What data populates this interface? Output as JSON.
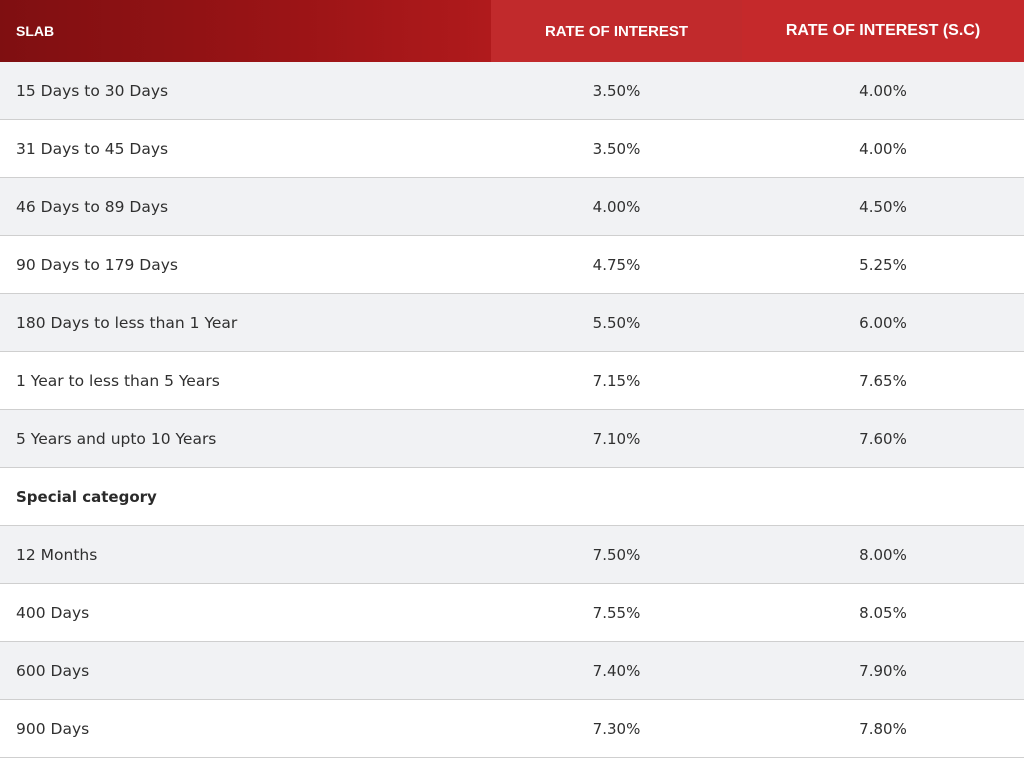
{
  "header": {
    "slab": "SLAB",
    "rate_of_interest": "RATE OF INTEREST",
    "rate_of_interest_sc": "RATE OF INTEREST  (S.C)"
  },
  "rows": [
    {
      "slab": "15 Days to 30 Days",
      "roi": "3.50%",
      "roi_sc": "4.00%"
    },
    {
      "slab": "31 Days to 45 Days",
      "roi": "3.50%",
      "roi_sc": "4.00%"
    },
    {
      "slab": "46 Days to 89 Days",
      "roi": "4.00%",
      "roi_sc": "4.50%"
    },
    {
      "slab": "90 Days to 179 Days",
      "roi": "4.75%",
      "roi_sc": "5.25%"
    },
    {
      "slab": "180 Days to less than 1 Year",
      "roi": "5.50%",
      "roi_sc": "6.00%"
    },
    {
      "slab": "1 Year to less than 5 Years",
      "roi": "7.15%",
      "roi_sc": "7.65%"
    },
    {
      "slab": "5 Years and upto 10 Years",
      "roi": "7.10%",
      "roi_sc": "7.60%"
    },
    {
      "slab": "Special category",
      "roi": "",
      "roi_sc": ""
    },
    {
      "slab": "12 Months",
      "roi": "7.50%",
      "roi_sc": "8.00%"
    },
    {
      "slab": "400 Days",
      "roi": "7.55%",
      "roi_sc": "8.05%"
    },
    {
      "slab": "600 Days",
      "roi": "7.40%",
      "roi_sc": "7.90%"
    },
    {
      "slab": "900 Days",
      "roi": "7.30%",
      "roi_sc": "7.80%"
    }
  ]
}
